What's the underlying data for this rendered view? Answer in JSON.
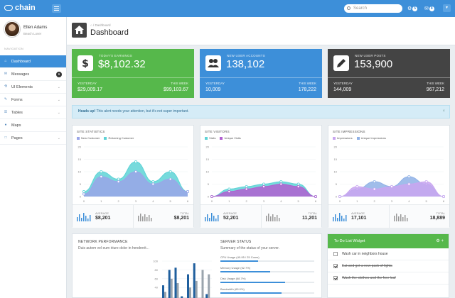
{
  "app": {
    "name": "chain"
  },
  "topbar": {
    "search_placeholder": "Search",
    "notifications_count": "5",
    "messages_count": "8"
  },
  "user": {
    "name": "Ellen Adams",
    "role": "Beach Lover"
  },
  "sidebar": {
    "heading": "NAVIGATION",
    "items": [
      {
        "label": "Dashboard",
        "icon": "home-icon",
        "active": true
      },
      {
        "label": "Messages",
        "icon": "envelope-icon",
        "badge": "6"
      },
      {
        "label": "UI Elements",
        "icon": "flask-icon",
        "chevron": true
      },
      {
        "label": "Forms",
        "icon": "pencil-icon",
        "chevron": true
      },
      {
        "label": "Tables",
        "icon": "table-icon",
        "chevron": true
      },
      {
        "label": "Maps",
        "icon": "map-marker-icon"
      },
      {
        "label": "Pages",
        "icon": "file-icon",
        "chevron": true
      }
    ]
  },
  "page": {
    "breadcrumb": "Dashboard",
    "title": "Dashboard"
  },
  "cards": [
    {
      "label": "TODAY'S EARNINGS",
      "value": "$8,102.32",
      "yesterday_label": "YESTERDAY",
      "yesterday": "$29,009.17",
      "week_label": "THIS WEEK",
      "week": "$99,103.67",
      "color": "#56b84b",
      "icon": "dollar-icon"
    },
    {
      "label": "NEW USER ACCOUNTS",
      "value": "138,102",
      "yesterday_label": "YESTERDAY",
      "yesterday": "10,009",
      "week_label": "THIS WEEK",
      "week": "178,222",
      "color": "#3d8fd9",
      "icon": "users-icon"
    },
    {
      "label": "NEW USER POSTS",
      "value": "153,900",
      "yesterday_label": "YESTERDAY",
      "yesterday": "144,009",
      "week_label": "THIS WEEK",
      "week": "967,212",
      "color": "#444444",
      "icon": "pencil-icon"
    }
  ],
  "alert": {
    "strong": "Heads up!",
    "text": "This alert needs your attention, but it's not super important."
  },
  "panels": [
    {
      "title": "SITE STATISTICS",
      "legend": [
        "New Customer",
        "Returning Customer"
      ],
      "colors": [
        "#9aa5e8",
        "#5ed3d6"
      ],
      "avg_label": "AVERAGE",
      "avg": "$8,201",
      "total_label": "TOTAL",
      "total": "$8,201"
    },
    {
      "title": "SITE VISITORS",
      "legend": [
        "Visits",
        "Unique Visits"
      ],
      "colors": [
        "#5ed3d6",
        "#b15fd0"
      ],
      "avg_label": "AVERAGE",
      "avg": "52,201",
      "total_label": "TOTAL",
      "total": "11,201"
    },
    {
      "title": "SITE IMPRESSIONS",
      "legend": [
        "Impressions",
        "Unique Impressions"
      ],
      "colors": [
        "#c9a6f0",
        "#8fb1e6"
      ],
      "avg_label": "AVERAGE",
      "avg": "17,101",
      "total_label": "TOTAL",
      "total": "18,889"
    }
  ],
  "chart_data": [
    {
      "type": "area",
      "title": "SITE STATISTICS",
      "x": [
        0,
        1,
        2,
        3,
        4,
        5,
        6
      ],
      "ylim": [
        0,
        20
      ],
      "yticks": [
        0,
        5,
        10,
        15,
        20
      ],
      "series": [
        {
          "name": "New Customer",
          "values": [
            1,
            8,
            6,
            10,
            5,
            7,
            2
          ]
        },
        {
          "name": "Returning Customer",
          "values": [
            2,
            10,
            7,
            14,
            6,
            10,
            2
          ]
        }
      ]
    },
    {
      "type": "area",
      "title": "SITE VISITORS",
      "x": [
        0,
        1,
        2,
        3,
        4,
        5,
        6
      ],
      "ylim": [
        0,
        20
      ],
      "yticks": [
        0,
        5,
        10,
        15,
        20
      ],
      "series": [
        {
          "name": "Visits",
          "values": [
            0,
            3,
            4,
            5,
            6,
            5,
            0
          ]
        },
        {
          "name": "Unique Visits",
          "values": [
            0,
            2,
            3,
            4,
            5,
            4,
            0
          ]
        }
      ]
    },
    {
      "type": "area",
      "title": "SITE IMPRESSIONS",
      "x": [
        0,
        1,
        2,
        3,
        4,
        5,
        6
      ],
      "ylim": [
        0,
        20
      ],
      "yticks": [
        0,
        5,
        10,
        15,
        20
      ],
      "series": [
        {
          "name": "Impressions",
          "values": [
            0,
            4,
            3,
            4,
            5,
            6,
            0
          ]
        },
        {
          "name": "Unique Impressions",
          "values": [
            0,
            3,
            6,
            4,
            8,
            5,
            0
          ]
        }
      ]
    },
    {
      "type": "bar",
      "title": "NETWORK PERFORMANCE",
      "yticks": [
        40,
        60,
        80,
        100
      ],
      "ylim": [
        0,
        100
      ],
      "series": [
        {
          "name": "",
          "values": [
            45,
            80,
            85,
            20,
            70,
            95,
            15,
            25
          ]
        },
        {
          "name": "",
          "values": [
            30,
            60,
            50,
            10,
            40,
            55,
            80,
            70
          ]
        }
      ]
    }
  ],
  "network": {
    "title": "NETWORK PERFORMANCE",
    "subtitle": "Duis autem vel eum iriure dolor in hendrerit...",
    "server_title": "SERVER STATUS",
    "server_subtitle": "Summary of the status of your server.",
    "server_rows": [
      {
        "label": "CPU Usage (40-95 / 25 Cores)",
        "value": 40
      },
      {
        "label": "Memory Usage (52.7%)",
        "value": 53
      },
      {
        "label": "Disk Usage (68.7%)",
        "value": 69
      },
      {
        "label": "Bandwidth (65.0%)",
        "value": 65
      }
    ]
  },
  "todo": {
    "title": "To-Do List Widget",
    "items": [
      {
        "text": "Wash car in neighbors house",
        "done": false
      },
      {
        "text": "Eat and get a new pack of lights",
        "done": true
      },
      {
        "text": "Wash the clothes and the free loaf",
        "done": true
      }
    ]
  }
}
